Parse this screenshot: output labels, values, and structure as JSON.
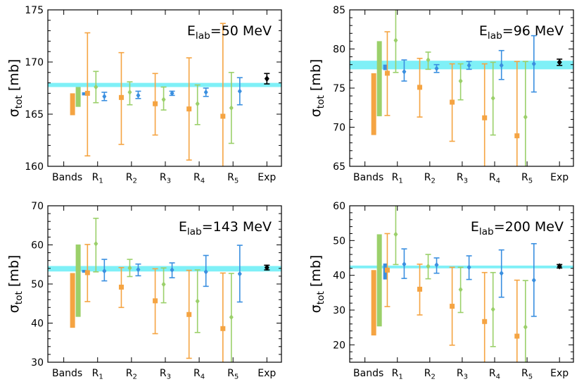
{
  "colors": {
    "orange": "#f5a442",
    "green": "#9bd06a",
    "blue": "#3a8fe0",
    "exp": "#000000",
    "band": "#7ff0f7"
  },
  "chart_data": [
    {
      "type": "errorbar",
      "title": "",
      "energy_label": "E",
      "energy_sub": "lab",
      "energy_value": "=50 MeV",
      "ylabel": "σ",
      "ylabel_sub": "tot",
      "ylabel_unit": " [mb]",
      "ylim": [
        160,
        175
      ],
      "yticks": [
        160,
        165,
        170,
        175
      ],
      "categories": [
        {
          "main": "Bands",
          "sub": ""
        },
        {
          "main": "R",
          "sub": "1"
        },
        {
          "main": "R",
          "sub": "2"
        },
        {
          "main": "R",
          "sub": "3"
        },
        {
          "main": "R",
          "sub": "4"
        },
        {
          "main": "R",
          "sub": "5"
        },
        {
          "main": "Exp",
          "sub": ""
        }
      ],
      "bands": {
        "orange": [
          164.9,
          167.0
        ],
        "green": [
          165.7,
          167.6
        ],
        "blue": [
          166.8,
          167.1
        ]
      },
      "exp_band": [
        167.6,
        168.0
      ],
      "series": {
        "orange": [
          [
            167.0,
            161.0,
            172.8
          ],
          [
            166.6,
            162.1,
            170.9
          ],
          [
            166.0,
            163.0,
            168.9
          ],
          [
            165.5,
            160.6,
            170.4
          ],
          [
            164.8,
            160.0,
            173.7
          ]
        ],
        "green": [
          [
            167.6,
            166.1,
            169.1
          ],
          [
            167.1,
            165.9,
            168.1
          ],
          [
            166.4,
            165.4,
            167.6
          ],
          [
            166.0,
            164.0,
            167.8
          ],
          [
            165.6,
            162.2,
            169.0
          ]
        ],
        "blue": [
          [
            166.7,
            166.3,
            167.1
          ],
          [
            166.8,
            166.5,
            167.2
          ],
          [
            167.0,
            166.8,
            167.2
          ],
          [
            167.1,
            166.7,
            167.5
          ],
          [
            167.2,
            165.9,
            168.5
          ]
        ]
      },
      "exp": [
        168.4,
        167.9,
        168.9
      ]
    },
    {
      "type": "errorbar",
      "title": "",
      "energy_label": "E",
      "energy_sub": "lab",
      "energy_value": "=96 MeV",
      "ylabel": "σ",
      "ylabel_sub": "tot",
      "ylabel_unit": " [mb]",
      "ylim": [
        65,
        85
      ],
      "yticks": [
        65,
        70,
        75,
        80,
        85
      ],
      "categories": [
        {
          "main": "Bands",
          "sub": ""
        },
        {
          "main": "R",
          "sub": "1"
        },
        {
          "main": "R",
          "sub": "2"
        },
        {
          "main": "R",
          "sub": "3"
        },
        {
          "main": "R",
          "sub": "4"
        },
        {
          "main": "R",
          "sub": "5"
        },
        {
          "main": "Exp",
          "sub": ""
        }
      ],
      "bands": {
        "orange": [
          69.0,
          76.9
        ],
        "green": [
          71.4,
          81.0
        ],
        "blue": [
          77.3,
          78.0
        ]
      },
      "exp_band": [
        77.4,
        78.5
      ],
      "series": {
        "orange": [
          [
            76.9,
            71.5,
            82.2
          ],
          [
            75.1,
            71.3,
            78.8
          ],
          [
            73.2,
            68.2,
            78.1
          ],
          [
            71.2,
            65.0,
            78.1
          ],
          [
            68.9,
            65.0,
            78.4
          ]
        ],
        "green": [
          [
            81.1,
            77.0,
            85.0
          ],
          [
            78.6,
            77.4,
            79.6
          ],
          [
            75.9,
            73.5,
            78.1
          ],
          [
            73.7,
            69.0,
            78.3
          ],
          [
            71.3,
            65.0,
            78.4
          ]
        ],
        "blue": [
          [
            77.1,
            75.9,
            78.6
          ],
          [
            77.5,
            77.0,
            78.0
          ],
          [
            77.9,
            77.4,
            78.4
          ],
          [
            77.9,
            76.1,
            79.8
          ],
          [
            78.1,
            74.5,
            81.7
          ]
        ]
      },
      "exp": [
        78.3,
        77.9,
        78.7
      ]
    },
    {
      "type": "errorbar",
      "title": "",
      "energy_label": "E",
      "energy_sub": "lab",
      "energy_value": "=143 MeV",
      "ylabel": "σ",
      "ylabel_sub": "tot",
      "ylabel_unit": " [mb]",
      "ylim": [
        30,
        70
      ],
      "yticks": [
        30,
        40,
        50,
        60,
        70
      ],
      "categories": [
        {
          "main": "Bands",
          "sub": ""
        },
        {
          "main": "R",
          "sub": "1"
        },
        {
          "main": "R",
          "sub": "2"
        },
        {
          "main": "R",
          "sub": "3"
        },
        {
          "main": "R",
          "sub": "4"
        },
        {
          "main": "R",
          "sub": "5"
        },
        {
          "main": "Exp",
          "sub": ""
        }
      ],
      "bands": {
        "orange": [
          38.8,
          52.8
        ],
        "green": [
          41.6,
          60.1
        ],
        "blue": [
          52.9,
          53.6
        ]
      },
      "exp_band": [
        53.2,
        54.6
      ],
      "series": {
        "orange": [
          [
            52.9,
            45.5,
            60.1
          ],
          [
            49.2,
            44.0,
            54.2
          ],
          [
            45.7,
            37.3,
            53.9
          ],
          [
            42.2,
            31.0,
            53.5
          ],
          [
            38.6,
            30.0,
            52.8
          ]
        ],
        "green": [
          [
            60.3,
            53.1,
            66.8
          ],
          [
            54.1,
            51.9,
            56.3
          ],
          [
            49.9,
            45.2,
            54.1
          ],
          [
            45.6,
            37.6,
            53.6
          ],
          [
            41.5,
            30.0,
            52.7
          ]
        ],
        "blue": [
          [
            53.3,
            50.8,
            56.3
          ],
          [
            53.7,
            52.1,
            55.1
          ],
          [
            53.6,
            51.6,
            55.4
          ],
          [
            53.1,
            49.4,
            57.3
          ],
          [
            52.6,
            45.4,
            59.9
          ]
        ]
      },
      "exp": [
        54.2,
        53.6,
        54.8
      ]
    },
    {
      "type": "errorbar",
      "title": "",
      "energy_label": "E",
      "energy_sub": "lab",
      "energy_value": "=200 MeV",
      "ylabel": "σ",
      "ylabel_sub": "tot",
      "ylabel_unit": " [mb]",
      "ylim": [
        15,
        60
      ],
      "yticks": [
        20,
        30,
        40,
        50,
        60
      ],
      "categories": [
        {
          "main": "Bands",
          "sub": ""
        },
        {
          "main": "R",
          "sub": "1"
        },
        {
          "main": "R",
          "sub": "2"
        },
        {
          "main": "R",
          "sub": "3"
        },
        {
          "main": "R",
          "sub": "4"
        },
        {
          "main": "R",
          "sub": "5"
        },
        {
          "main": "Exp",
          "sub": ""
        }
      ],
      "bands": {
        "orange": [
          22.7,
          41.5
        ],
        "green": [
          25.3,
          51.8
        ],
        "blue": [
          38.8,
          43.4
        ]
      },
      "exp_band": [
        42.0,
        42.8
      ],
      "series": {
        "orange": [
          [
            41.5,
            31.0,
            52.0
          ],
          [
            36.0,
            28.6,
            43.2
          ],
          [
            31.1,
            19.9,
            42.3
          ],
          [
            26.7,
            15.0,
            40.8
          ],
          [
            22.5,
            15.0,
            38.6
          ]
        ],
        "green": [
          [
            51.8,
            43.1,
            60.0
          ],
          [
            42.6,
            39.0,
            46.0
          ],
          [
            35.9,
            29.3,
            42.3
          ],
          [
            30.2,
            19.5,
            40.8
          ],
          [
            25.1,
            15.0,
            38.5
          ]
        ],
        "blue": [
          [
            43.2,
            39.1,
            47.6
          ],
          [
            43.0,
            40.6,
            45.0
          ],
          [
            42.3,
            38.8,
            45.6
          ],
          [
            40.6,
            33.7,
            47.3
          ],
          [
            38.6,
            28.2,
            49.1
          ]
        ]
      },
      "exp": [
        42.6,
        42.1,
        43.1
      ]
    }
  ]
}
